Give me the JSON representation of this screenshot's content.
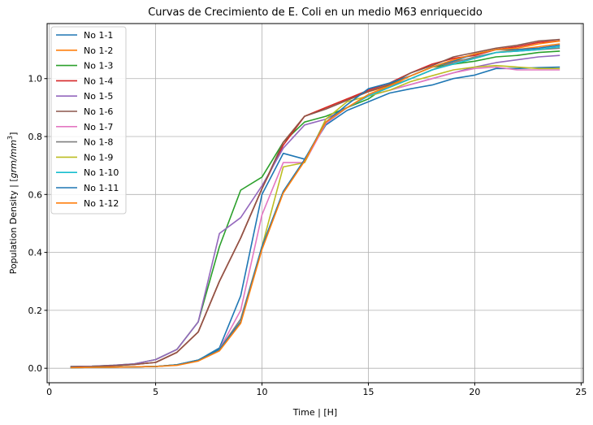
{
  "chart_data": {
    "type": "line",
    "title": "Curvas de Crecimiento de E. Coli en un medio M63 enriquecido",
    "xlabel": "Time | [H]",
    "ylabel_main": "Population Density | [",
    "ylabel_unit": "grm/mm",
    "ylabel_exp": "3",
    "ylabel_close": "]",
    "xlim": [
      -0.1,
      25.1
    ],
    "ylim": [
      -0.05,
      1.19
    ],
    "xticks": [
      0,
      5,
      10,
      15,
      20,
      25
    ],
    "yticks": [
      0.0,
      0.2,
      0.4,
      0.6,
      0.8,
      1.0
    ],
    "grid": true,
    "legend_position": "top-left",
    "x": [
      1,
      2,
      3,
      4,
      5,
      6,
      7,
      8,
      9,
      10,
      11,
      12,
      13,
      14,
      15,
      16,
      17,
      18,
      19,
      20,
      21,
      22,
      23,
      24
    ],
    "series": [
      {
        "name": "No 1-1",
        "color": "#1f77b4",
        "values": [
          0.002,
          0.003,
          0.004,
          0.005,
          0.006,
          0.012,
          0.028,
          0.07,
          0.25,
          0.6,
          0.742,
          0.722,
          0.84,
          0.89,
          0.92,
          0.95,
          0.965,
          0.978,
          1.0,
          1.012,
          1.035,
          1.035,
          1.038,
          1.04
        ]
      },
      {
        "name": "No 1-2",
        "color": "#ff7f0e",
        "values": [
          0.005,
          0.006,
          0.009,
          0.013,
          0.02,
          0.055,
          0.125,
          0.3,
          0.45,
          0.62,
          0.78,
          0.87,
          0.9,
          0.93,
          0.955,
          0.975,
          1.0,
          1.03,
          1.06,
          1.07,
          1.09,
          1.1,
          1.11,
          1.12
        ]
      },
      {
        "name": "No 1-3",
        "color": "#2ca02c",
        "values": [
          0.006,
          0.007,
          0.01,
          0.015,
          0.03,
          0.065,
          0.16,
          0.42,
          0.615,
          0.66,
          0.78,
          0.85,
          0.87,
          0.9,
          0.93,
          0.98,
          1.01,
          1.04,
          1.05,
          1.06,
          1.075,
          1.08,
          1.09,
          1.095
        ]
      },
      {
        "name": "No 1-4",
        "color": "#d62728",
        "values": [
          0.005,
          0.006,
          0.009,
          0.013,
          0.02,
          0.055,
          0.125,
          0.3,
          0.45,
          0.62,
          0.77,
          0.87,
          0.9,
          0.93,
          0.96,
          0.985,
          1.02,
          1.05,
          1.07,
          1.08,
          1.1,
          1.11,
          1.125,
          1.13
        ]
      },
      {
        "name": "No 1-5",
        "color": "#9467bd",
        "values": [
          0.006,
          0.007,
          0.01,
          0.015,
          0.03,
          0.065,
          0.16,
          0.465,
          0.52,
          0.63,
          0.76,
          0.84,
          0.86,
          0.9,
          0.94,
          0.96,
          0.98,
          1.0,
          1.02,
          1.04,
          1.055,
          1.065,
          1.075,
          1.08
        ]
      },
      {
        "name": "No 1-6",
        "color": "#8c564b",
        "values": [
          0.005,
          0.006,
          0.009,
          0.013,
          0.02,
          0.055,
          0.125,
          0.3,
          0.45,
          0.62,
          0.78,
          0.87,
          0.895,
          0.925,
          0.955,
          0.98,
          1.02,
          1.045,
          1.075,
          1.09,
          1.105,
          1.115,
          1.13,
          1.135
        ]
      },
      {
        "name": "No 1-7",
        "color": "#e377c2",
        "values": [
          0.002,
          0.003,
          0.004,
          0.005,
          0.006,
          0.012,
          0.028,
          0.065,
          0.2,
          0.53,
          0.71,
          0.71,
          0.845,
          0.9,
          0.94,
          0.96,
          0.98,
          1.0,
          1.02,
          1.035,
          1.04,
          1.03,
          1.03,
          1.03
        ]
      },
      {
        "name": "No 1-8",
        "color": "#7f7f7f",
        "values": [
          0.002,
          0.003,
          0.004,
          0.005,
          0.006,
          0.012,
          0.028,
          0.065,
          0.17,
          0.42,
          0.61,
          0.72,
          0.85,
          0.9,
          0.94,
          0.97,
          1.0,
          1.03,
          1.055,
          1.075,
          1.09,
          1.095,
          1.1,
          1.105
        ]
      },
      {
        "name": "No 1-9",
        "color": "#bcbd22",
        "values": [
          0.002,
          0.003,
          0.004,
          0.005,
          0.006,
          0.012,
          0.028,
          0.065,
          0.16,
          0.42,
          0.695,
          0.71,
          0.86,
          0.92,
          0.94,
          0.96,
          0.99,
          1.01,
          1.03,
          1.04,
          1.045,
          1.04,
          1.035,
          1.035
        ]
      },
      {
        "name": "No 1-10",
        "color": "#17becf",
        "values": [
          0.002,
          0.003,
          0.004,
          0.005,
          0.006,
          0.012,
          0.028,
          0.065,
          0.16,
          0.42,
          0.61,
          0.72,
          0.85,
          0.9,
          0.94,
          0.97,
          1.0,
          1.03,
          1.05,
          1.07,
          1.09,
          1.095,
          1.1,
          1.11
        ]
      },
      {
        "name": "No 1-11",
        "color": "#1f77b4",
        "values": [
          0.002,
          0.003,
          0.004,
          0.005,
          0.006,
          0.012,
          0.028,
          0.065,
          0.16,
          0.42,
          0.61,
          0.72,
          0.85,
          0.91,
          0.965,
          0.985,
          1.01,
          1.04,
          1.06,
          1.085,
          1.1,
          1.1,
          1.105,
          1.115
        ]
      },
      {
        "name": "No 1-12",
        "color": "#ff7f0e",
        "values": [
          0.002,
          0.003,
          0.004,
          0.005,
          0.006,
          0.01,
          0.025,
          0.06,
          0.155,
          0.41,
          0.605,
          0.715,
          0.85,
          0.9,
          0.945,
          0.975,
          1.01,
          1.04,
          1.065,
          1.085,
          1.1,
          1.105,
          1.12,
          1.13
        ]
      }
    ]
  }
}
